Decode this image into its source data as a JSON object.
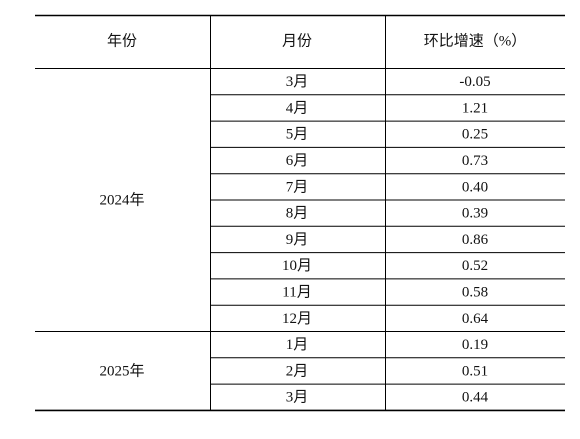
{
  "table": {
    "header": [
      "年份",
      "月份",
      "环比增速（%）"
    ],
    "groups": [
      {
        "year": "2024年",
        "rows": [
          [
            "3月",
            "-0.05"
          ],
          [
            "4月",
            "1.21"
          ],
          [
            "5月",
            "0.25"
          ],
          [
            "6月",
            "0.73"
          ],
          [
            "7月",
            "0.40"
          ],
          [
            "8月",
            "0.39"
          ],
          [
            "9月",
            "0.86"
          ],
          [
            "10月",
            "0.52"
          ],
          [
            "11月",
            "0.58"
          ],
          [
            "12月",
            "0.64"
          ]
        ]
      },
      {
        "year": "2025年",
        "rows": [
          [
            "1月",
            "0.19"
          ],
          [
            "2月",
            "0.51"
          ],
          [
            "3月",
            "0.44"
          ]
        ]
      }
    ]
  }
}
